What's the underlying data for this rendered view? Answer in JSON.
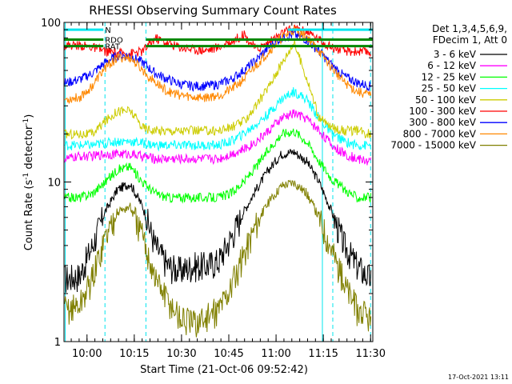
{
  "chart_data": {
    "type": "line",
    "title": "RHESSI Observing Summary Count Rates",
    "xlabel": "Start Time (21-Oct-06 09:52:42)",
    "ylabel_main": "Count Rate (s",
    "ylabel_sup1": "-1",
    "ylabel_mid": " detector",
    "ylabel_sup2": "-1",
    "ylabel_end": ")",
    "x_unit": "minutes after 09:52:42",
    "xlim": [
      0,
      98
    ],
    "ylim": [
      1,
      100
    ],
    "y_scale": "log",
    "grid": false,
    "x_ticks": [
      {
        "label": "10:00",
        "x": 7.3
      },
      {
        "label": "10:15",
        "x": 22.3
      },
      {
        "label": "10:30",
        "x": 37.3
      },
      {
        "label": "10:45",
        "x": 52.3
      },
      {
        "label": "11:00",
        "x": 67.3
      },
      {
        "label": "11:15",
        "x": 82.3
      },
      {
        "label": "11:30",
        "x": 97.3
      }
    ],
    "y_ticks": [
      {
        "label": "1",
        "y": 1
      },
      {
        "label": "10",
        "y": 10
      },
      {
        "label": "100",
        "y": 100
      }
    ],
    "legend_header": [
      "Det 1,3,4,5,6,9,",
      "FDecim 1, Att 0"
    ],
    "legend_position": "right",
    "timestamp": "17-Oct-2021 13:11",
    "flags": [
      {
        "label": "N",
        "color": "#00e5ee",
        "y": 90,
        "segments": [
          [
            0,
            12.5
          ],
          [
            71,
            98
          ]
        ]
      },
      {
        "label": "RDO",
        "color": "#008800",
        "y": 78,
        "segments": [
          [
            0,
            12.5
          ],
          [
            26,
            98
          ]
        ]
      },
      {
        "label": "RAT",
        "color": "#008800",
        "y": 71,
        "segments": [
          [
            0,
            12.5
          ],
          [
            26,
            98
          ]
        ]
      }
    ],
    "vlines": [
      {
        "x": 0.4,
        "color": "#00e5ee",
        "style": "solid"
      },
      {
        "x": 13.0,
        "color": "#00e5ee",
        "style": "dashed"
      },
      {
        "x": 26.0,
        "color": "#00e5ee",
        "style": "dashed"
      },
      {
        "x": 82.0,
        "color": "#00e5ee",
        "style": "solid"
      },
      {
        "x": 85.3,
        "color": "#00e5ee",
        "style": "dashed"
      },
      {
        "x": 97.3,
        "color": "#00e5ee",
        "style": "dashed"
      }
    ],
    "x": [
      1,
      5,
      9,
      13,
      17,
      21,
      25,
      29,
      33,
      37,
      41,
      45,
      49,
      53,
      57,
      61,
      65,
      69,
      73,
      77,
      81,
      85,
      89,
      93,
      97
    ],
    "series": [
      {
        "name": "3 - 6 keV",
        "color": "#000000",
        "values": [
          2.5,
          2.6,
          4.0,
          6.5,
          9.0,
          9.8,
          7.0,
          4.0,
          3.0,
          2.8,
          3.0,
          3.0,
          3.2,
          4.5,
          6.5,
          9.0,
          12.0,
          15.0,
          15.5,
          13.5,
          10.0,
          6.5,
          4.0,
          3.0,
          2.5
        ]
      },
      {
        "name": "6 - 12 keV",
        "color": "#ff00ff",
        "values": [
          14.0,
          14.5,
          14.5,
          15.0,
          15.0,
          15.0,
          14.5,
          14.0,
          14.0,
          14.0,
          14.0,
          14.0,
          14.0,
          15.0,
          16.0,
          18.0,
          21.0,
          25.0,
          27.0,
          25.0,
          21.0,
          17.0,
          15.0,
          14.0,
          13.5
        ]
      },
      {
        "name": "12 - 25 keV",
        "color": "#00ff00",
        "values": [
          8.0,
          8.0,
          8.5,
          10.0,
          12.0,
          12.5,
          10.0,
          8.5,
          8.0,
          8.0,
          8.0,
          8.0,
          8.0,
          8.5,
          10.0,
          12.5,
          16.0,
          20.0,
          21.0,
          18.0,
          13.5,
          10.5,
          9.0,
          8.0,
          8.0
        ]
      },
      {
        "name": "25 - 50 keV",
        "color": "#00ffff",
        "values": [
          17.0,
          17.0,
          17.0,
          17.5,
          18.0,
          18.0,
          17.5,
          17.0,
          17.0,
          17.0,
          17.0,
          17.0,
          17.0,
          18.0,
          20.0,
          23.0,
          27.0,
          33.0,
          37.0,
          33.0,
          25.0,
          20.0,
          18.0,
          17.0,
          17.0
        ]
      },
      {
        "name": "50 - 100 keV",
        "color": "#cccc00",
        "values": [
          20.0,
          20.0,
          20.0,
          24.0,
          28.0,
          28.0,
          22.0,
          21.0,
          21.0,
          21.0,
          21.0,
          21.0,
          21.0,
          22.0,
          24.0,
          30.0,
          40.0,
          55.0,
          75.0,
          45.0,
          25.0,
          22.0,
          21.0,
          21.0,
          20.0
        ]
      },
      {
        "name": "100 - 300 keV",
        "color": "#ff0000",
        "values": [
          72.0,
          72.0,
          70.0,
          66.0,
          64.0,
          64.0,
          66.0,
          80.0,
          74.0,
          70.0,
          68.0,
          67.0,
          70.0,
          76.0,
          84.0,
          68.0,
          75.0,
          85.0,
          92.0,
          88.0,
          78.0,
          70.0,
          66.0,
          66.0,
          65.0
        ]
      },
      {
        "name": "300 - 800 keV",
        "color": "#0000ff",
        "values": [
          42.0,
          44.0,
          48.0,
          56.0,
          62.0,
          62.0,
          56.0,
          48.0,
          44.0,
          41.0,
          40.0,
          40.0,
          41.0,
          44.0,
          50.0,
          58.0,
          70.0,
          80.0,
          84.0,
          78.0,
          66.0,
          54.0,
          46.0,
          42.0,
          40.0
        ]
      },
      {
        "name": "800 - 7000 keV",
        "color": "#ff8800",
        "values": [
          33.0,
          34.0,
          40.0,
          52.0,
          60.0,
          60.0,
          50.0,
          42.0,
          37.0,
          35.0,
          34.0,
          34.0,
          35.0,
          38.0,
          44.0,
          54.0,
          66.0,
          80.0,
          90.0,
          82.0,
          66.0,
          52.0,
          42.0,
          37.0,
          35.0
        ]
      },
      {
        "name": "7000 - 15000 keV",
        "color": "#808000",
        "values": [
          1.6,
          1.7,
          2.5,
          4.5,
          6.5,
          7.0,
          4.5,
          2.5,
          1.8,
          1.4,
          1.3,
          1.4,
          1.6,
          2.2,
          3.5,
          5.5,
          7.5,
          9.5,
          10.0,
          8.5,
          6.0,
          3.8,
          2.3,
          1.6,
          1.4
        ]
      }
    ]
  }
}
